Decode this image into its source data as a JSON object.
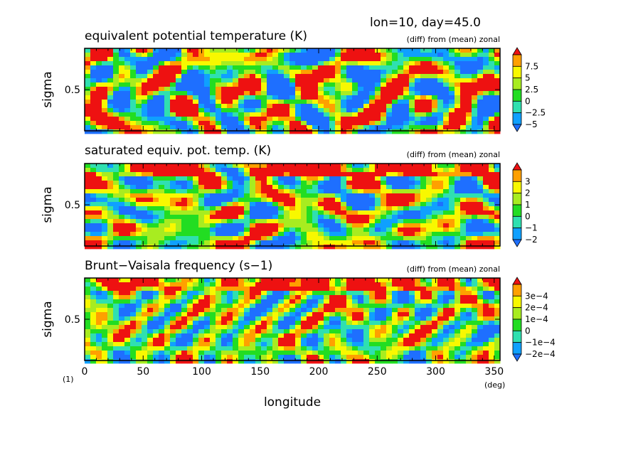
{
  "header": {
    "info": "lon=10, day=45.0"
  },
  "figure_label": "(1)",
  "chart_data": [
    {
      "type": "heatmap",
      "title": "equivalent potential temperature (K)",
      "subtitle": "(diff) from (mean) zonal",
      "ylabel": "sigma",
      "xlim": [
        0,
        355
      ],
      "ytick_labels": [
        "0.5"
      ],
      "colorbar_labels": [
        "7.5",
        "5",
        "2.5",
        "0",
        "−2.5",
        "−5"
      ],
      "colorbar_levels": 8,
      "colors": [
        "#1e6fff",
        "#0fa0ff",
        "#2fe0b0",
        "#22dd22",
        "#a8ec20",
        "#f8f800",
        "#ffa000",
        "#ee1111"
      ],
      "seed": 7
    },
    {
      "type": "heatmap",
      "title": "saturated equiv. pot. temp. (K)",
      "subtitle": "(diff) from (mean) zonal",
      "ylabel": "sigma",
      "xlim": [
        0,
        355
      ],
      "ytick_labels": [
        "0.5"
      ],
      "colorbar_labels": [
        "3",
        "2",
        "1",
        "0",
        "−1",
        "−2"
      ],
      "colorbar_levels": 8,
      "colors": [
        "#1e6fff",
        "#0fa0ff",
        "#2fe0b0",
        "#22dd22",
        "#a8ec20",
        "#f8f800",
        "#ffa000",
        "#ee1111"
      ],
      "seed": 19
    },
    {
      "type": "heatmap",
      "title": "Brunt−Vaisala frequency (s−1)",
      "subtitle": "(diff) from (mean) zonal",
      "ylabel": "sigma",
      "xlim": [
        0,
        355
      ],
      "ytick_labels": [
        "0.5"
      ],
      "colorbar_labels": [
        "3e−4",
        "2e−4",
        "1e−4",
        "0",
        "−1e−4",
        "−2e−4"
      ],
      "colorbar_levels": 8,
      "colors": [
        "#1e6fff",
        "#0fa0ff",
        "#2fe0b0",
        "#22dd22",
        "#a8ec20",
        "#f8f800",
        "#ffa000",
        "#ee1111"
      ],
      "seed": 31
    }
  ],
  "xaxis": {
    "ticks": [
      0,
      50,
      100,
      150,
      200,
      250,
      300,
      350
    ],
    "tick_labels": [
      "0",
      "50",
      "100",
      "150",
      "200",
      "250",
      "300",
      "350"
    ],
    "label": "longitude",
    "unit": "(deg)"
  }
}
